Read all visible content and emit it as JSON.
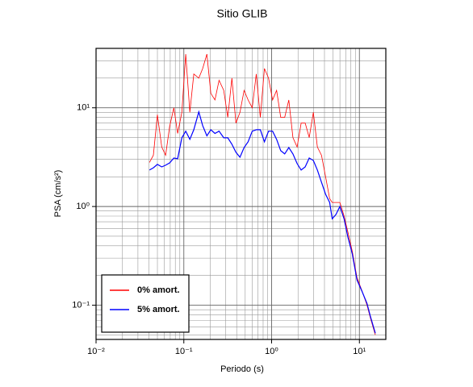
{
  "chart_data": {
    "type": "line",
    "title": "Sitio GLIB",
    "xlabel": "Periodo (s)",
    "ylabel": "PSA (cm/s²)",
    "log_scale": true,
    "grid": true,
    "legend": "lower left",
    "xlim": [
      0.01,
      20
    ],
    "ylim": [
      0.045,
      40
    ],
    "xticks": [
      {
        "value": 0.01,
        "label": "10⁻²"
      },
      {
        "value": 0.1,
        "label": "10⁻¹"
      },
      {
        "value": 1,
        "label": "10⁰"
      },
      {
        "value": 10,
        "label": "10¹"
      }
    ],
    "yticks": [
      {
        "value": 0.1,
        "label": "10⁻¹"
      },
      {
        "value": 1,
        "label": "10⁰"
      },
      {
        "value": 10,
        "label": "10¹"
      }
    ],
    "xminorticks": [
      0.02,
      0.03,
      0.04,
      0.05,
      0.06,
      0.07,
      0.08,
      0.09,
      0.2,
      0.3,
      0.4,
      0.5,
      0.6,
      0.7,
      0.8,
      0.9,
      2,
      3,
      4,
      5,
      6,
      7,
      8,
      9
    ],
    "yminorticks": [
      0.05,
      0.06,
      0.07,
      0.08,
      0.09,
      0.2,
      0.3,
      0.4,
      0.5,
      0.6,
      0.7,
      0.8,
      0.9,
      2,
      3,
      4,
      5,
      6,
      7,
      8,
      9,
      20,
      30,
      40
    ],
    "x": [
      0.0406,
      0.045,
      0.05,
      0.056,
      0.062,
      0.069,
      0.077,
      0.085,
      0.095,
      0.105,
      0.117,
      0.13,
      0.148,
      0.164,
      0.183,
      0.203,
      0.226,
      0.252,
      0.285,
      0.317,
      0.353,
      0.392,
      0.436,
      0.486,
      0.54,
      0.601,
      0.669,
      0.744,
      0.828,
      0.922,
      1.026,
      1.14,
      1.27,
      1.41,
      1.57,
      1.75,
      1.95,
      2.17,
      2.41,
      2.68,
      2.99,
      3.32,
      3.7,
      4.12,
      4.58,
      4.9,
      5.4,
      6.0,
      6.7,
      7.4,
      8.3,
      9.4,
      10.7,
      12.2,
      13.3,
      15.2
    ],
    "series": [
      {
        "name": "0% amort.",
        "color": "#ff0000",
        "values": [
          2.8,
          3.3,
          8.5,
          4.0,
          3.3,
          6.5,
          10,
          5.5,
          9,
          35,
          9,
          22,
          20,
          25,
          35,
          14,
          12,
          19,
          15,
          8,
          20,
          7,
          9,
          15,
          12,
          10,
          22,
          8,
          25,
          20,
          12,
          15,
          8,
          8,
          12,
          5,
          4,
          7,
          7,
          5,
          9,
          4,
          3.3,
          2.0,
          1.2,
          1.1,
          1.1,
          1.1,
          0.8,
          0.55,
          0.35,
          0.19,
          0.14,
          0.1,
          0.075,
          0.05
        ]
      },
      {
        "name": "5% amort.",
        "color": "#0000ff",
        "values": [
          2.34,
          2.47,
          2.67,
          2.52,
          2.62,
          2.77,
          3.1,
          3.05,
          4.97,
          5.8,
          4.79,
          6.0,
          9.1,
          6.6,
          5.2,
          6.0,
          5.5,
          5.8,
          4.97,
          4.97,
          4.27,
          3.54,
          3.16,
          3.96,
          4.52,
          5.8,
          6.0,
          6.0,
          4.52,
          5.8,
          5.8,
          4.79,
          3.68,
          3.41,
          3.96,
          3.41,
          2.72,
          2.34,
          2.52,
          3.1,
          2.93,
          2.34,
          1.76,
          1.33,
          1.1,
          0.75,
          0.83,
          1.0,
          0.75,
          0.49,
          0.33,
          0.18,
          0.138,
          0.104,
          0.078,
          0.052
        ]
      }
    ]
  }
}
